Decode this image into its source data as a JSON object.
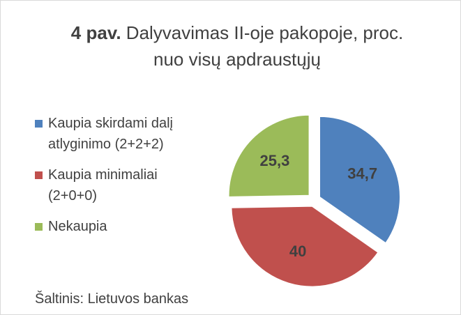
{
  "chart_data": {
    "type": "pie",
    "title_prefix": "4 pav.",
    "title": "Dalyvavimas II-oje pakopoje, proc. nuo visų apdraustųjų",
    "categories": [
      "Kaupia skirdami dalį atlyginimo (2+2+2)",
      "Kaupia minimaliai (2+0+0)",
      "Nekaupia"
    ],
    "values": [
      34.7,
      40,
      25.3
    ],
    "value_labels": [
      "34,7",
      "40",
      "25,3"
    ],
    "colors": [
      "#4f81bd",
      "#c0504d",
      "#9bbb59"
    ],
    "legend": "left",
    "source": "Šaltinis: Lietuvos bankas"
  }
}
